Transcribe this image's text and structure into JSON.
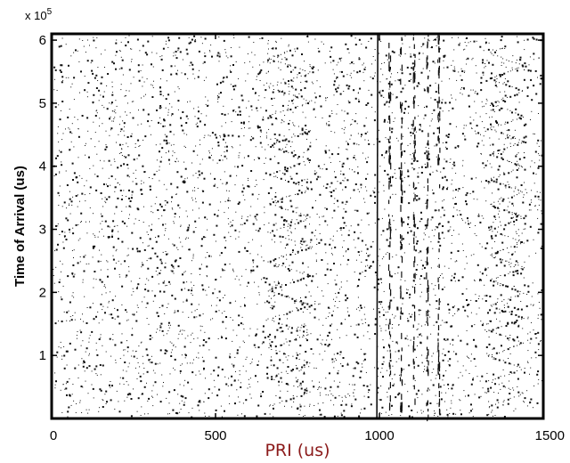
{
  "chart_data": {
    "type": "scatter",
    "title": "",
    "xlabel": "PRI (us)",
    "ylabel": "Time of Arrival (us)",
    "xlim": [
      0,
      1500
    ],
    "ylim": [
      0,
      610000
    ],
    "x_ticks": [
      0,
      500,
      1000,
      1500
    ],
    "y_ticks": [
      100000,
      200000,
      300000,
      400000,
      500000,
      600000
    ],
    "y_tick_labels": [
      "1",
      "2",
      "3",
      "4",
      "5",
      "6"
    ],
    "y_multiplier_label": "x 10",
    "y_multiplier_exponent": "5",
    "grid": false,
    "legend": "none",
    "marker_color": "#111111",
    "xlabel_color": "#8b1a1a",
    "background_noise": {
      "x_range": [
        0,
        1500
      ],
      "y_range": [
        0,
        610000
      ],
      "count": 4200
    },
    "series": [
      {
        "kind": "wobulated-pri-zigzag",
        "x_range": [
          660,
          790
        ],
        "y_range": [
          20000,
          590000
        ],
        "period": 46000,
        "density": 24
      },
      {
        "kind": "constant-pri-line",
        "x": 995,
        "y_range": [
          0,
          610000
        ]
      },
      {
        "kind": "staggered-pri-columns",
        "x_values": [
          1030,
          1065,
          1105,
          1145,
          1180
        ],
        "y_range": [
          0,
          610000
        ],
        "density": 70
      },
      {
        "kind": "right-edge-zigzag",
        "x_range": [
          1335,
          1440
        ],
        "y_range": [
          20000,
          590000
        ],
        "period": 40000,
        "density": 22
      }
    ]
  }
}
